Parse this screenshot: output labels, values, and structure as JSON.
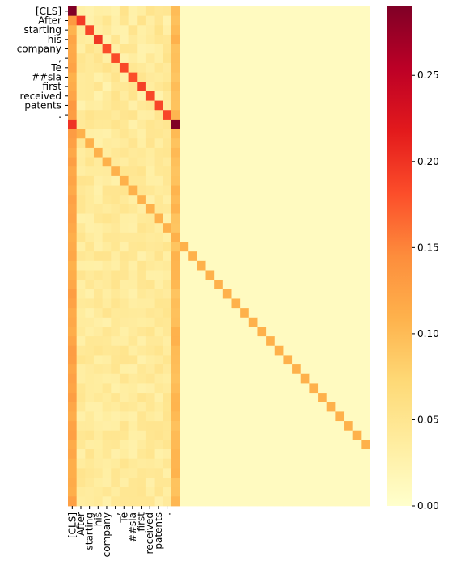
{
  "chart_data": {
    "type": "heatmap",
    "title": "",
    "xlabel": "",
    "ylabel": "",
    "tokens": [
      "[CLS]",
      "After",
      "starting",
      "his",
      "company",
      ",",
      "Te",
      "##sla",
      "first",
      "received",
      "patents",
      "."
    ],
    "n_rows": 53,
    "n_cols": 35,
    "colormap": "YlOrRd",
    "color_range": [
      0.0,
      0.29
    ],
    "colorbar_ticks": [
      "0.00",
      "0.05",
      "0.10",
      "0.15",
      "0.20",
      "0.25"
    ],
    "colorbar_tick_values": [
      0.0,
      0.05,
      0.1,
      0.15,
      0.2,
      0.25
    ],
    "token_diagonal_value": 0.19,
    "padding_diagonal_value": 0.11,
    "cls_row_cls_value": 0.29,
    "sep_row_sep_value": 0.29,
    "sep_row_cls_value": 0.2,
    "cls_column_value": 0.12,
    "sep_column_value": 0.1,
    "token_background_value": 0.04,
    "padding_background_value": 0.01
  }
}
